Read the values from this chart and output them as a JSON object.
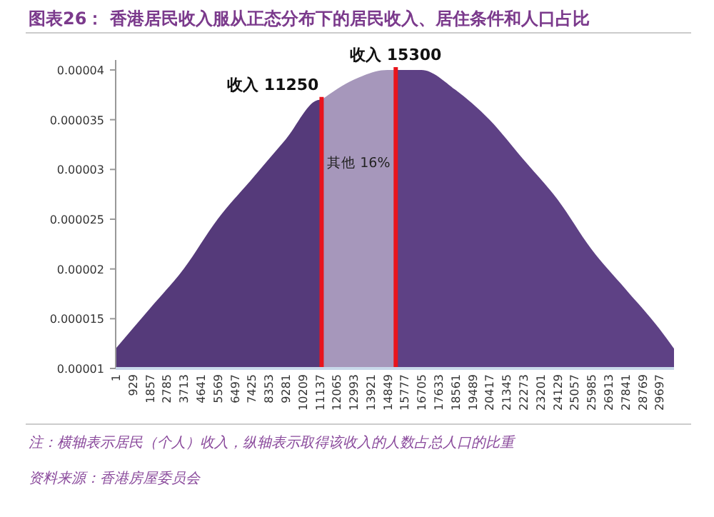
{
  "chart_data": {
    "type": "area",
    "title": "图表26： 香港居民收入服从正态分布下的居民收入、居住条件和人口占比",
    "series": [
      {
        "color": "#553a7a",
        "x": [
          1,
          1857,
          3713,
          5569,
          7425,
          9281,
          11137,
          11250
        ],
        "values": [
          1.2e-05,
          1.6e-05,
          2e-05,
          2.5e-05,
          2.9e-05,
          3.3e-05,
          3.7e-05,
          3.7e-05
        ]
      },
      {
        "color": "#a697bb",
        "x": [
          11250,
          12993,
          14849,
          15300
        ],
        "values": [
          3.7e-05,
          3.9e-05,
          4e-05,
          4e-05
        ]
      },
      {
        "color": "#5e4185",
        "x": [
          15300,
          16705,
          18561,
          20417,
          22273,
          24129,
          25985,
          27841,
          29697,
          30500
        ],
        "values": [
          4e-05,
          4e-05,
          3.8e-05,
          3.5e-05,
          3.1e-05,
          2.7e-05,
          2.2e-05,
          1.8e-05,
          1.4e-05,
          1.2e-05
        ]
      }
    ],
    "xlim": [
      1,
      30500
    ],
    "xticks": [
      1,
      929,
      1857,
      2785,
      3713,
      4641,
      5569,
      6497,
      7425,
      8353,
      9281,
      10209,
      11137,
      12065,
      12993,
      13921,
      14849,
      15777,
      16705,
      17633,
      18561,
      19489,
      20417,
      21345,
      22273,
      23201,
      24129,
      25057,
      25985,
      26913,
      27841,
      28769,
      29697
    ],
    "ylim": [
      1e-05,
      4.1e-05
    ],
    "yticks": [
      {
        "value": 1e-05,
        "label": "0.00001"
      },
      {
        "value": 1.5e-05,
        "label": "0.000015"
      },
      {
        "value": 2e-05,
        "label": "0.00002"
      },
      {
        "value": 2.5e-05,
        "label": "0.000025"
      },
      {
        "value": 3e-05,
        "label": "0.00003"
      },
      {
        "value": 3.5e-05,
        "label": "0.000035"
      },
      {
        "value": 4e-05,
        "label": "0.00004"
      }
    ],
    "ref_lines": [
      {
        "axis": "x",
        "value": 11250,
        "label": "收入 11250",
        "color": "#e8141c"
      },
      {
        "axis": "x",
        "value": 15300,
        "label": "收入 15300",
        "color": "#e8141c"
      }
    ],
    "annotations": [
      "其他 16%",
      "注：横轴表示居民（个人）收入，纵轴表示取得该收入的人数占总人口的比重",
      "资料来源：香港房屋委员会"
    ],
    "grid": false
  }
}
